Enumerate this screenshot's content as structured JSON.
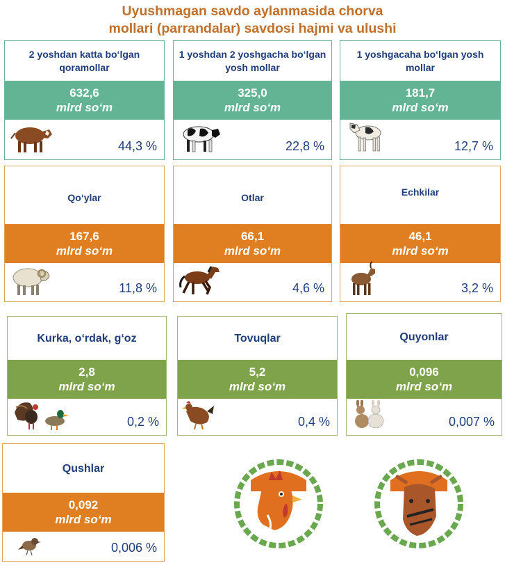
{
  "title": {
    "line1": "Uyushmagan savdo aylanmasida chorva",
    "line2": "mollari (parrandalar) savdosi hajmi va ulushi"
  },
  "unit_text": "mlrd so‘m",
  "colors": {
    "teal": "#63b494",
    "orange": "#e07f21",
    "green": "#7fa34a",
    "text": "#1f3d7a",
    "title": "#c0702a"
  },
  "cards": [
    {
      "label": "2 yoshdan katta bo‘lgan qoramollar",
      "value": "632,6",
      "share": "44,3 %",
      "icon": "cow-icon"
    },
    {
      "label": "1 yoshdan 2 yoshgacha bo‘lgan yosh mollar",
      "value": "325,0",
      "share": "22,8 %",
      "icon": "young-cattle-icon"
    },
    {
      "label": "1 yoshgacaha bo‘lgan yosh mollar",
      "value": "181,7",
      "share": "12,7 %",
      "icon": "calf-icon"
    },
    {
      "label": "Qo‘ylar",
      "value": "167,6",
      "share": "11,8 %",
      "icon": "sheep-icon"
    },
    {
      "label": "Otlar",
      "value": "66,1",
      "share": "4,6 %",
      "icon": "horse-icon"
    },
    {
      "label": "Echkilar",
      "value": "46,1",
      "share": "3,2 %",
      "icon": "goat-icon"
    },
    {
      "label": "Kurka, o‘rdak, g‘oz",
      "value": "2,8",
      "share": "0,2 %",
      "icon": "turkey-duck-icon"
    },
    {
      "label": "Tovuqlar",
      "value": "5,2",
      "share": "0,4 %",
      "icon": "chicken-icon"
    },
    {
      "label": "Quyonlar",
      "value": "0,096",
      "share": "0,007 %",
      "icon": "rabbit-icon"
    },
    {
      "label": "Qushlar",
      "value": "0,092",
      "share": "0,006 %",
      "icon": "sparrow-icon"
    }
  ],
  "emblems": [
    {
      "icon": "rooster-emblem-icon"
    },
    {
      "icon": "bull-emblem-icon"
    }
  ]
}
